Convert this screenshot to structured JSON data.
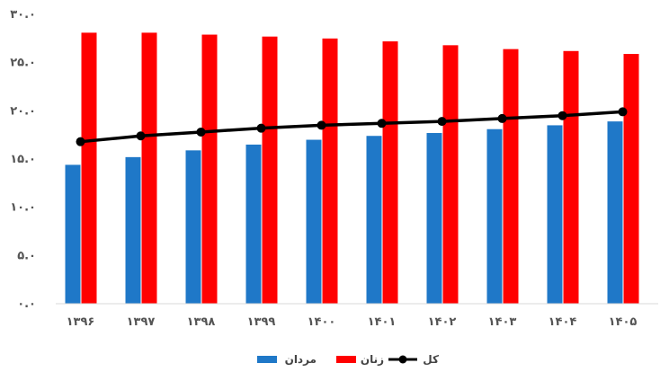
{
  "chart_data": {
    "type": "bar",
    "categories": [
      "۱۳۹۶",
      "۱۳۹۷",
      "۱۳۹۸",
      "۱۳۹۹",
      "۱۴۰۰",
      "۱۴۰۱",
      "۱۴۰۲",
      "۱۴۰۳",
      "۱۴۰۴",
      "۱۴۰۵"
    ],
    "ylim": [
      0,
      30
    ],
    "yticks": [
      0,
      5,
      10,
      15,
      20,
      25,
      30
    ],
    "ytick_labels": [
      "۰.۰",
      "۵.۰",
      "۱۰.۰",
      "۱۵.۰",
      "۲۰.۰",
      "۲۵.۰",
      "۳۰.۰"
    ],
    "grid": false,
    "legend_position": "bottom",
    "series": [
      {
        "name": "مردان",
        "kind": "bar",
        "color": "#1f78c8",
        "values": [
          14.4,
          15.2,
          15.9,
          16.5,
          17.0,
          17.4,
          17.7,
          18.1,
          18.5,
          18.9
        ]
      },
      {
        "name": "زنان",
        "kind": "bar",
        "color": "#ff0000",
        "values": [
          28.1,
          28.1,
          27.9,
          27.7,
          27.5,
          27.2,
          26.8,
          26.4,
          26.2,
          25.9
        ]
      },
      {
        "name": "کل",
        "kind": "line",
        "color": "#000000",
        "values": [
          16.8,
          17.4,
          17.8,
          18.2,
          18.5,
          18.7,
          18.9,
          19.2,
          19.5,
          19.9
        ]
      }
    ]
  }
}
